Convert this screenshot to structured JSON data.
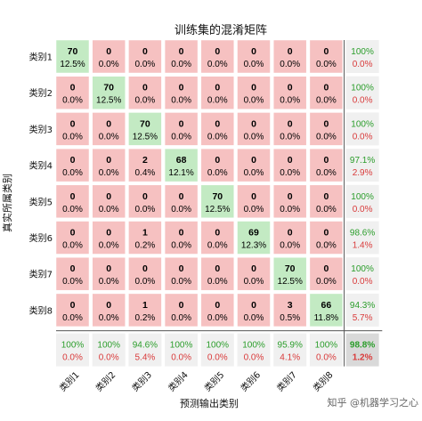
{
  "chart_data": {
    "type": "heatmap",
    "title": "训练集的混淆矩阵",
    "xlabel": "预测输出类别",
    "ylabel": "真实所属类别",
    "categories": [
      "类别1",
      "类别2",
      "类别3",
      "类别4",
      "类别5",
      "类别6",
      "类别7",
      "类别8"
    ],
    "matrix": [
      [
        70,
        0,
        0,
        0,
        0,
        0,
        0,
        0
      ],
      [
        0,
        70,
        0,
        0,
        0,
        0,
        0,
        0
      ],
      [
        0,
        0,
        70,
        0,
        0,
        0,
        0,
        0
      ],
      [
        0,
        0,
        2,
        68,
        0,
        0,
        0,
        0
      ],
      [
        0,
        0,
        0,
        0,
        70,
        0,
        0,
        0
      ],
      [
        0,
        0,
        1,
        0,
        0,
        69,
        0,
        0
      ],
      [
        0,
        0,
        0,
        0,
        0,
        0,
        70,
        0
      ],
      [
        0,
        0,
        1,
        0,
        0,
        0,
        3,
        66
      ]
    ],
    "matrix_percent": [
      [
        "12.5%",
        "0.0%",
        "0.0%",
        "0.0%",
        "0.0%",
        "0.0%",
        "0.0%",
        "0.0%"
      ],
      [
        "0.0%",
        "12.5%",
        "0.0%",
        "0.0%",
        "0.0%",
        "0.0%",
        "0.0%",
        "0.0%"
      ],
      [
        "0.0%",
        "0.0%",
        "12.5%",
        "0.0%",
        "0.0%",
        "0.0%",
        "0.0%",
        "0.0%"
      ],
      [
        "0.0%",
        "0.0%",
        "0.4%",
        "12.1%",
        "0.0%",
        "0.0%",
        "0.0%",
        "0.0%"
      ],
      [
        "0.0%",
        "0.0%",
        "0.0%",
        "0.0%",
        "12.5%",
        "0.0%",
        "0.0%",
        "0.0%"
      ],
      [
        "0.0%",
        "0.0%",
        "0.2%",
        "0.0%",
        "0.0%",
        "12.3%",
        "0.0%",
        "0.0%"
      ],
      [
        "0.0%",
        "0.0%",
        "0.0%",
        "0.0%",
        "0.0%",
        "0.0%",
        "12.5%",
        "0.0%"
      ],
      [
        "0.0%",
        "0.0%",
        "0.2%",
        "0.0%",
        "0.0%",
        "0.0%",
        "0.5%",
        "11.8%"
      ]
    ],
    "row_summary": [
      [
        "100%",
        "0.0%"
      ],
      [
        "100%",
        "0.0%"
      ],
      [
        "100%",
        "0.0%"
      ],
      [
        "97.1%",
        "2.9%"
      ],
      [
        "100%",
        "0.0%"
      ],
      [
        "98.6%",
        "1.4%"
      ],
      [
        "100%",
        "0.0%"
      ],
      [
        "94.3%",
        "5.7%"
      ]
    ],
    "column_summary": [
      [
        "100%",
        "0.0%"
      ],
      [
        "100%",
        "0.0%"
      ],
      [
        "94.6%",
        "5.4%"
      ],
      [
        "100%",
        "0.0%"
      ],
      [
        "100%",
        "0.0%"
      ],
      [
        "100%",
        "0.0%"
      ],
      [
        "95.9%",
        "4.1%"
      ],
      [
        "100%",
        "0.0%"
      ]
    ],
    "overall": [
      "98.8%",
      "1.2%"
    ],
    "colors": {
      "diagonal": "#c3eac3",
      "off_diagonal": "#f6c1c1",
      "summary": "#f0f0f0",
      "overall": "#d9d9d9",
      "good_text": "#2a9d2a",
      "bad_text": "#d93a3a"
    }
  },
  "watermark": "知乎 @机器学习之心"
}
